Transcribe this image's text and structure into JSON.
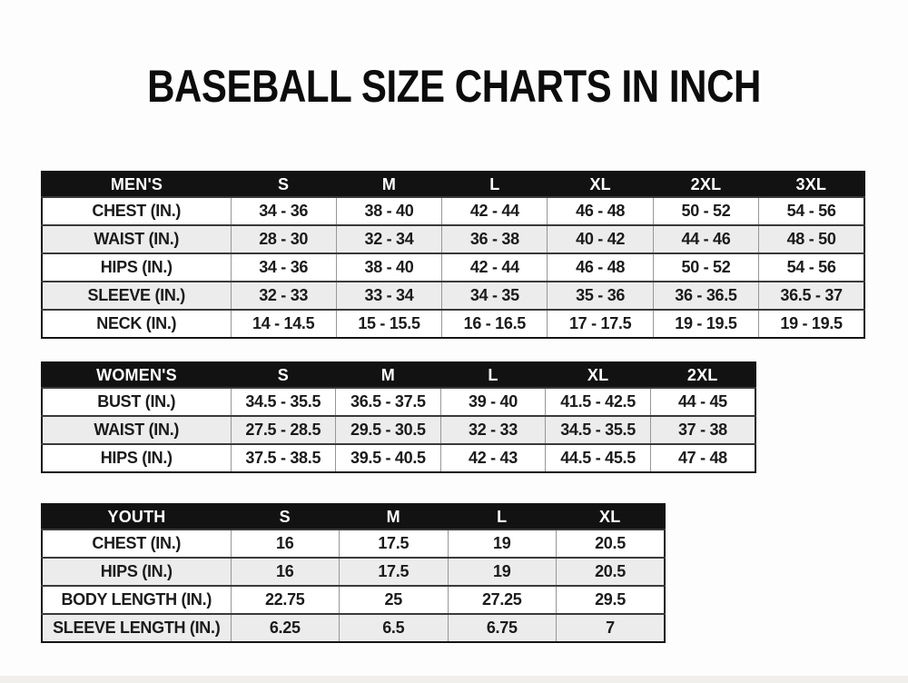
{
  "title": "BASEBALL SIZE CHARTS IN INCH",
  "colors": {
    "header_bg": "#121212",
    "header_text": "#ffffff",
    "row_bg": "#ffffff",
    "row_alt_bg": "#ececec",
    "outer_border": "#141414",
    "text": "#1b1b1b"
  },
  "chart_data": [
    {
      "type": "table",
      "group": "MEN'S",
      "columns": [
        "MEN'S",
        "S",
        "M",
        "L",
        "XL",
        "2XL",
        "3XL"
      ],
      "rows": [
        [
          "CHEST (IN.)",
          "34 - 36",
          "38 - 40",
          "42 - 44",
          "46 - 48",
          "50 - 52",
          "54 - 56"
        ],
        [
          "WAIST (IN.)",
          "28 - 30",
          "32 - 34",
          "36 - 38",
          "40 - 42",
          "44 - 46",
          "48 - 50"
        ],
        [
          "HIPS (IN.)",
          "34 - 36",
          "38 - 40",
          "42 - 44",
          "46 - 48",
          "50 - 52",
          "54 - 56"
        ],
        [
          "SLEEVE (IN.)",
          "32 - 33",
          "33 - 34",
          "34 - 35",
          "35 - 36",
          "36 - 36.5",
          "36.5 - 37"
        ],
        [
          "NECK (IN.)",
          "14 - 14.5",
          "15 - 15.5",
          "16 - 16.5",
          "17 - 17.5",
          "19 - 19.5",
          "19 - 19.5"
        ]
      ]
    },
    {
      "type": "table",
      "group": "WOMEN'S",
      "columns": [
        "WOMEN'S",
        "S",
        "M",
        "L",
        "XL",
        "2XL"
      ],
      "rows": [
        [
          "BUST (IN.)",
          "34.5 - 35.5",
          "36.5 - 37.5",
          "39 - 40",
          "41.5 - 42.5",
          "44 - 45"
        ],
        [
          "WAIST (IN.)",
          "27.5 - 28.5",
          "29.5 - 30.5",
          "32 - 33",
          "34.5 - 35.5",
          "37 - 38"
        ],
        [
          "HIPS (IN.)",
          "37.5 - 38.5",
          "39.5 - 40.5",
          "42 - 43",
          "44.5 - 45.5",
          "47 - 48"
        ]
      ]
    },
    {
      "type": "table",
      "group": "YOUTH",
      "columns": [
        "YOUTH",
        "S",
        "M",
        "L",
        "XL"
      ],
      "rows": [
        [
          "CHEST (IN.)",
          "16",
          "17.5",
          "19",
          "20.5"
        ],
        [
          "HIPS (IN.)",
          "16",
          "17.5",
          "19",
          "20.5"
        ],
        [
          "BODY LENGTH (IN.)",
          "22.75",
          "25",
          "27.25",
          "29.5"
        ],
        [
          "SLEEVE LENGTH (IN.)",
          "6.25",
          "6.5",
          "6.75",
          "7"
        ]
      ]
    }
  ]
}
